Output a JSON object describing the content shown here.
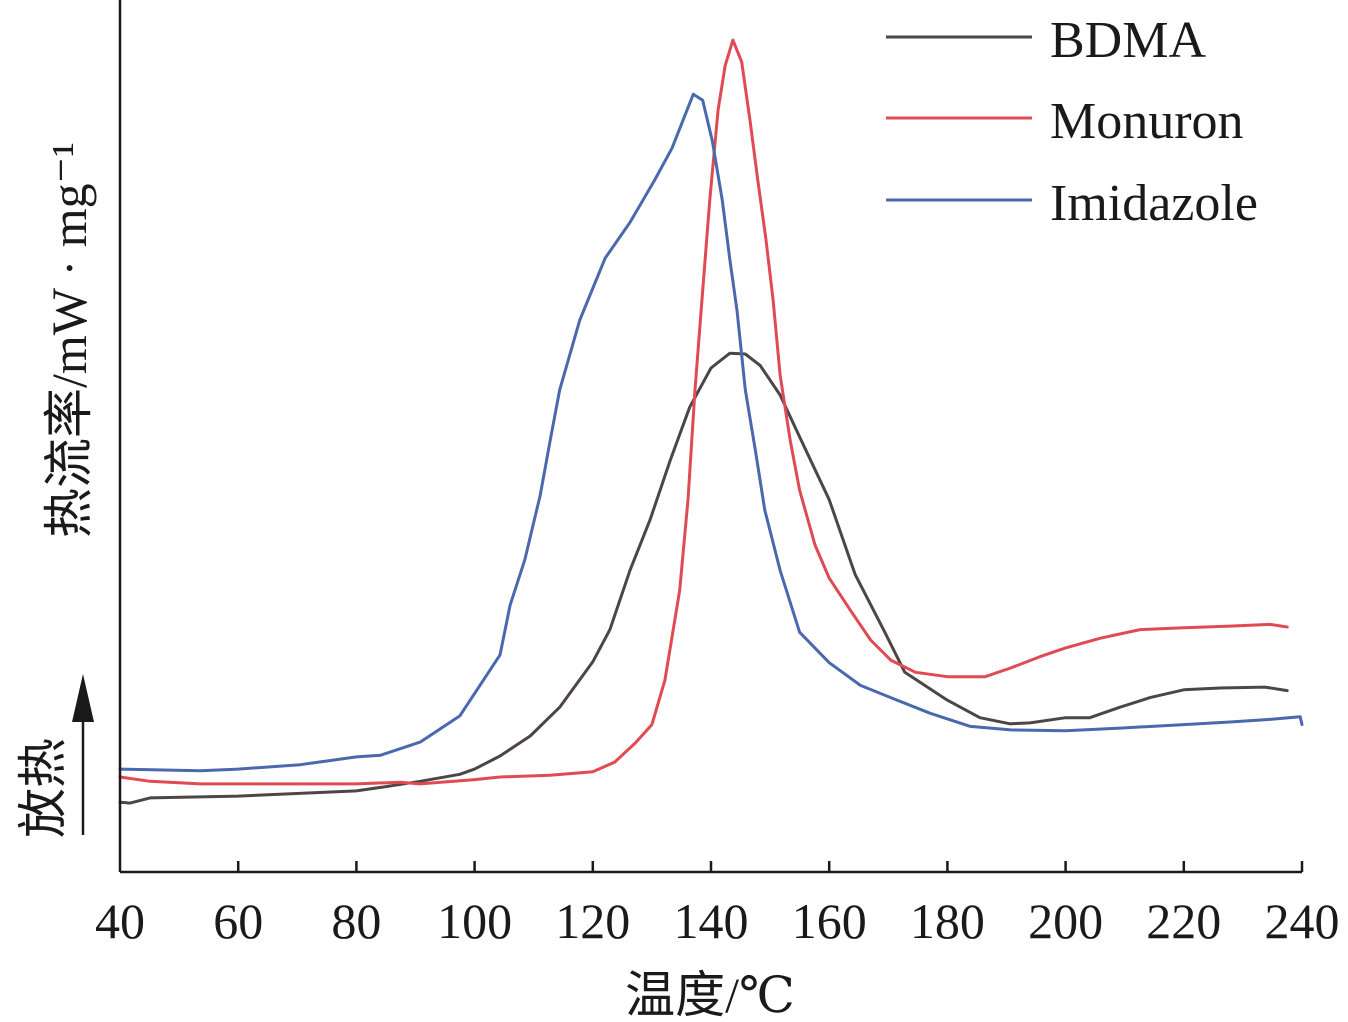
{
  "chart_data": {
    "type": "line",
    "title": "",
    "xlabel": "温度/℃",
    "ylabel": "热流率/mW · mg⁻¹",
    "xlim": [
      40,
      240
    ],
    "ylim": [
      0,
      100
    ],
    "xticks": [
      40,
      60,
      80,
      100,
      120,
      140,
      160,
      180,
      200,
      220,
      240
    ],
    "yticks": [],
    "grid": false,
    "legend": "top-right",
    "annotation": {
      "text": "放热",
      "arrow": "up"
    },
    "series": [
      {
        "name": "BDMA",
        "color": "#4e4646",
        "x": [
          40,
          41.7,
          45.1,
          60,
          80,
          84.1,
          90.8,
          97.5,
          100,
          104.3,
          109.4,
          114.4,
          120,
          122.9,
          126.3,
          129.7,
          133.1,
          136.4,
          140,
          143.2,
          145.8,
          148.3,
          151.7,
          155,
          160,
          164.4,
          169.4,
          172.8,
          180,
          185.5,
          190.6,
          194,
          200,
          204.1,
          209.2,
          214.3,
          220,
          226.1,
          233.7,
          237.5
        ],
        "y": [
          8.0,
          7.9,
          8.5,
          8.7,
          9.3,
          9.7,
          10.4,
          11.2,
          11.8,
          13.3,
          15.6,
          18.9,
          24.1,
          27.8,
          34.6,
          40.4,
          47.2,
          53.3,
          57.8,
          59.5,
          59.4,
          58.1,
          54.7,
          49.9,
          42.7,
          34.1,
          27.5,
          22.9,
          19.7,
          17.7,
          17.0,
          17.1,
          17.7,
          17.7,
          18.9,
          20.0,
          20.9,
          21.1,
          21.2,
          20.8
        ]
      },
      {
        "name": "Monuron",
        "color": "#e04a52",
        "x": [
          40,
          45.1,
          53.6,
          60,
          70.5,
          80,
          87.4,
          90.8,
          100,
          104.3,
          112.8,
          120,
          123.7,
          127.2,
          130,
          132.2,
          134.7,
          136.1,
          137.3,
          138.6,
          139.8,
          141.2,
          142.4,
          143.7,
          145.2,
          146.6,
          147.9,
          149.3,
          150.5,
          151.7,
          153.4,
          155,
          157.6,
          160,
          163.6,
          167,
          170.4,
          174.6,
          180,
          186.4,
          190.7,
          195.7,
          200,
          205.8,
          212.6,
          220,
          227.8,
          234.6,
          237.5
        ],
        "y": [
          10.9,
          10.4,
          10.1,
          10.1,
          10.1,
          10.1,
          10.3,
          10.1,
          10.6,
          10.9,
          11.1,
          11.5,
          12.6,
          14.8,
          16.9,
          22.0,
          32.3,
          42.7,
          55.3,
          66.7,
          77.1,
          87.4,
          92.5,
          95.4,
          92.9,
          86.2,
          79.4,
          72.5,
          65.6,
          57.0,
          49.5,
          43.8,
          37.5,
          33.7,
          30.0,
          26.6,
          24.3,
          22.9,
          22.4,
          22.4,
          23.4,
          24.7,
          25.7,
          26.8,
          27.8,
          28.0,
          28.2,
          28.4,
          28.1
        ]
      },
      {
        "name": "Imidazole",
        "color": "#4a68ad",
        "x": [
          40,
          53.6,
          60,
          70.5,
          80,
          84.1,
          90.8,
          97.5,
          100.9,
          104.3,
          106,
          108.5,
          111.1,
          112.8,
          114.4,
          117.8,
          122.1,
          126.3,
          130.5,
          133.4,
          137,
          138.6,
          140.2,
          141.9,
          143.2,
          144.4,
          145.8,
          147.5,
          149.1,
          151.7,
          155,
          160,
          165.3,
          170.4,
          177.1,
          183.9,
          190.7,
          200,
          209.2,
          220,
          227.8,
          234.6,
          239.7,
          240
        ],
        "y": [
          11.8,
          11.6,
          11.8,
          12.3,
          13.2,
          13.4,
          14.9,
          17.9,
          21.4,
          24.9,
          30.6,
          35.8,
          43.2,
          49.5,
          55.3,
          63.3,
          70.4,
          74.5,
          79.4,
          83.0,
          89.2,
          88.5,
          83.9,
          77.1,
          70.2,
          64.4,
          55.3,
          48.4,
          41.5,
          34.6,
          27.5,
          24.0,
          21.4,
          20.0,
          18.2,
          16.7,
          16.3,
          16.2,
          16.5,
          16.9,
          17.2,
          17.5,
          17.8,
          16.9
        ]
      }
    ]
  }
}
